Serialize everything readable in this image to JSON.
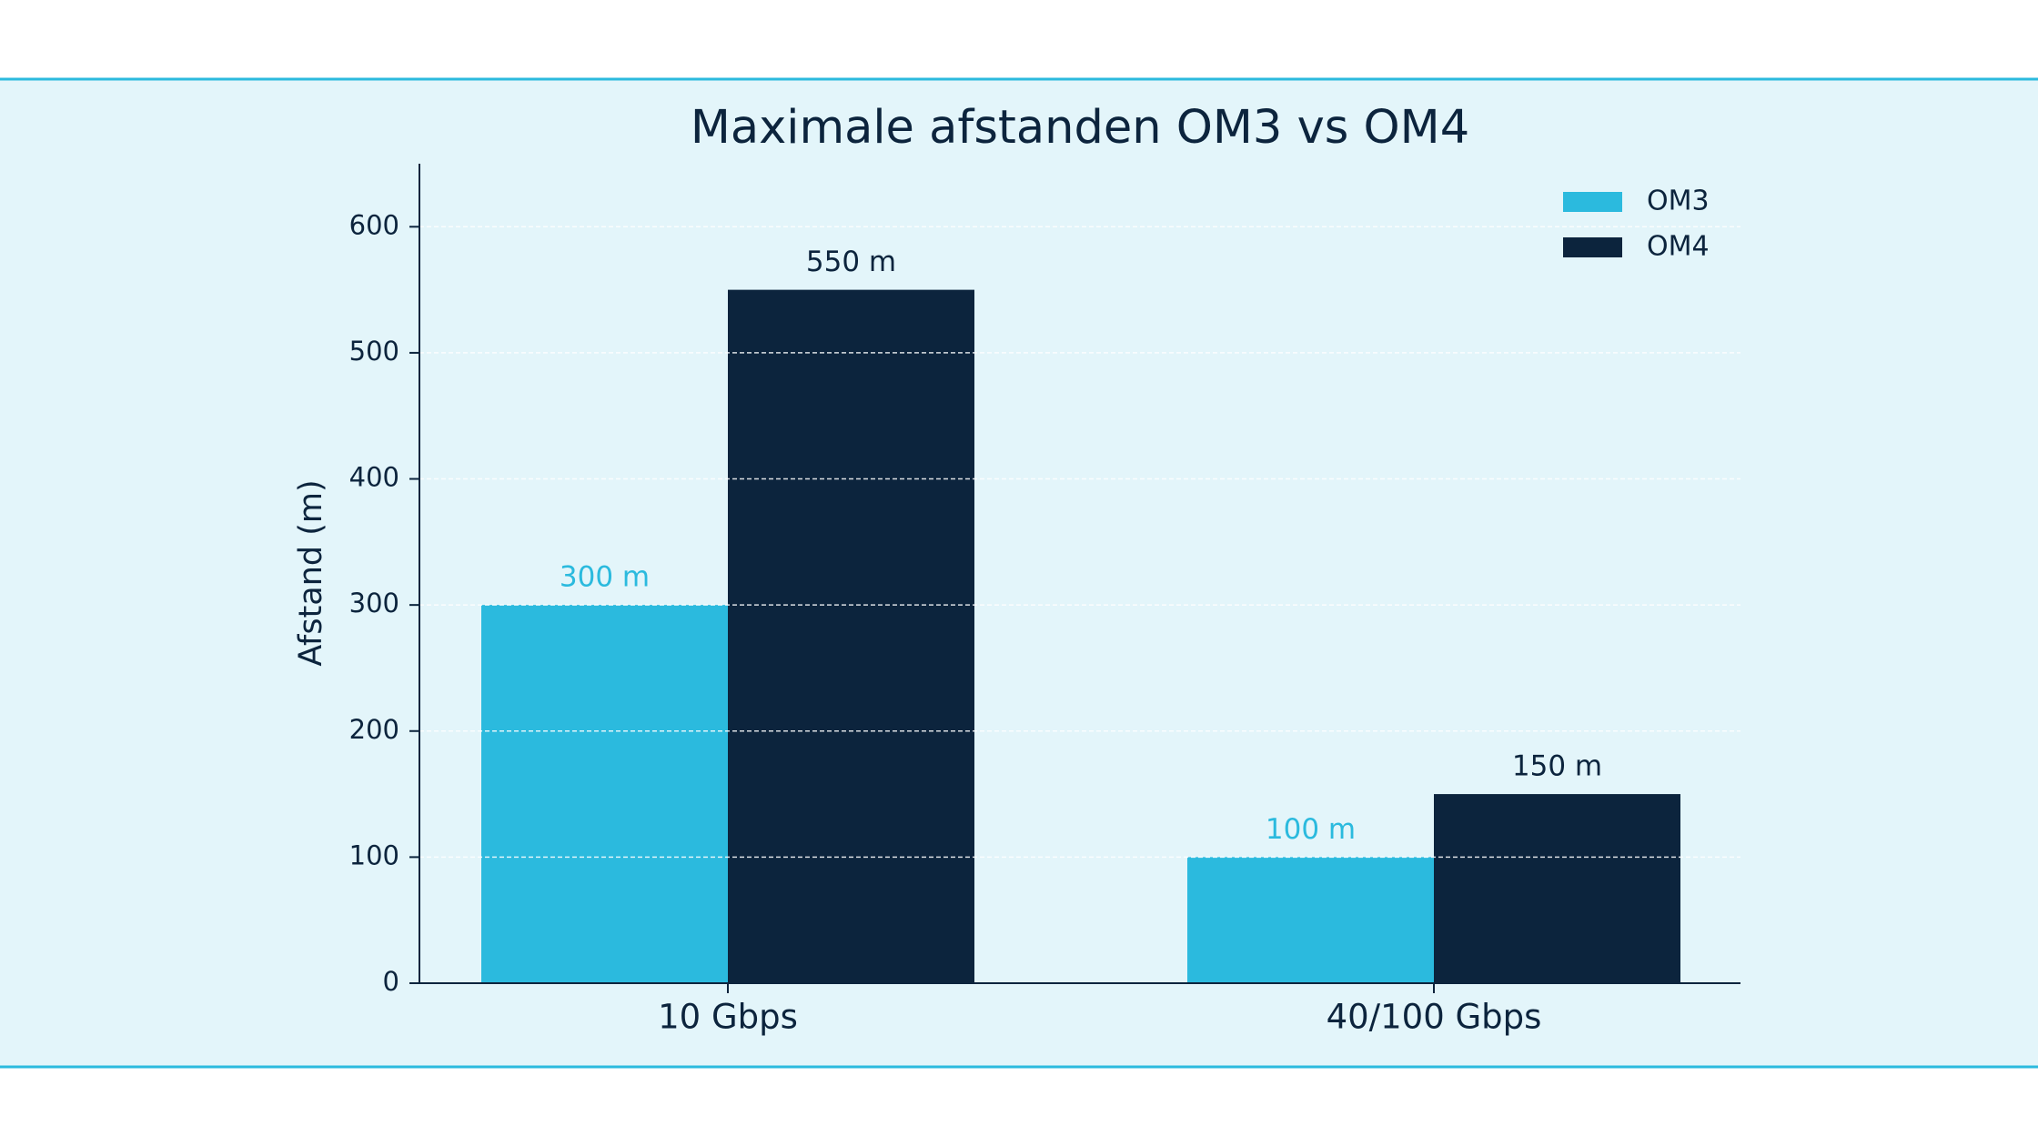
{
  "chart_data": {
    "type": "bar",
    "title": "Maximale afstanden OM3 vs OM4",
    "y_label": "Afstand (m)",
    "categories": [
      "10 Gbps",
      "40/100 Gbps"
    ],
    "series": [
      {
        "name": "OM3",
        "color": "#2bbade",
        "values": [
          300,
          100
        ],
        "value_labels": [
          "300 m",
          "100 m"
        ]
      },
      {
        "name": "OM4",
        "color": "#0c243d",
        "values": [
          550,
          150
        ],
        "value_labels": [
          "550 m",
          "150 m"
        ]
      }
    ],
    "ylim": [
      0,
      650
    ],
    "yticks": [
      0,
      100,
      200,
      300,
      400,
      500,
      600
    ],
    "grid": true,
    "legend": "upper right"
  }
}
